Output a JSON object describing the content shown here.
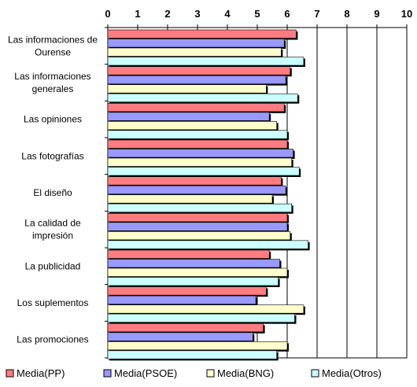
{
  "chart_data": {
    "type": "bar",
    "orientation": "horizontal",
    "xlim": [
      0,
      10
    ],
    "ticks": [
      "0",
      "1",
      "2",
      "3",
      "4",
      "5",
      "6",
      "7",
      "8",
      "9",
      "10"
    ],
    "categories": [
      [
        "Las informaciones de",
        "Ourense"
      ],
      [
        "Las informaciones",
        "generales"
      ],
      [
        "Las opiniones"
      ],
      [
        "Las fotografías"
      ],
      [
        "El diseño"
      ],
      [
        "La calidad de",
        "impresión"
      ],
      [
        "La publicidad"
      ],
      [
        "Los suplementos"
      ],
      [
        "Las promociones"
      ]
    ],
    "series": [
      {
        "name": "Media(PP)",
        "color": "#FF7C80",
        "values": [
          6.3,
          6.1,
          5.9,
          6.0,
          5.8,
          6.0,
          5.4,
          5.3,
          5.2
        ]
      },
      {
        "name": "Media(PSOE)",
        "color": "#9999FF",
        "values": [
          5.9,
          5.95,
          5.4,
          6.2,
          5.95,
          6.0,
          5.75,
          4.95,
          4.85
        ]
      },
      {
        "name": "Media(BNG)",
        "color": "#FFFFCC",
        "values": [
          5.8,
          5.3,
          5.65,
          6.15,
          5.5,
          6.1,
          6.0,
          6.55,
          6.0
        ]
      },
      {
        "name": "Media(Otros)",
        "color": "#CCFFFF",
        "values": [
          6.55,
          6.35,
          6.0,
          6.4,
          6.15,
          6.7,
          5.7,
          6.25,
          5.65
        ]
      }
    ],
    "legend_position": "bottom",
    "grid": true
  }
}
